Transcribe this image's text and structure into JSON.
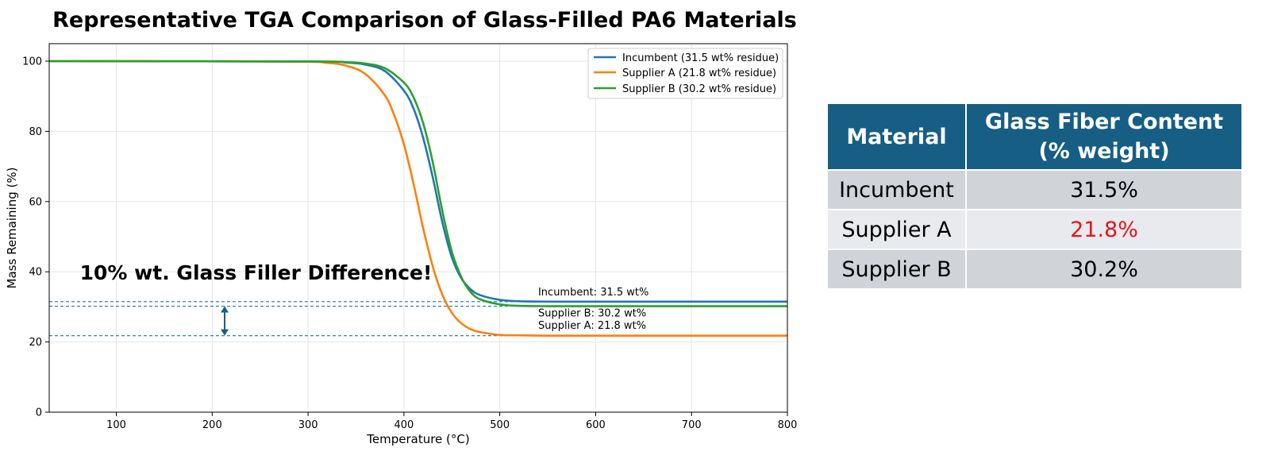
{
  "chart_data": {
    "type": "line",
    "title": "Representative TGA Comparison of Glass-Filled PA6 Materials",
    "xlabel": "Temperature (°C)",
    "ylabel": "Mass Remaining (%)",
    "xlim": [
      30,
      800
    ],
    "ylim": [
      0,
      105
    ],
    "xticks": [
      100,
      200,
      300,
      400,
      500,
      600,
      700,
      800
    ],
    "yticks": [
      0,
      20,
      40,
      60,
      80,
      100
    ],
    "grid": true,
    "legend_position": "top-right",
    "series": [
      {
        "name": "Incumbent (31.5 wt% residue)",
        "color": "#1f77b4",
        "x": [
          30,
          300,
          340,
          360,
          380,
          400,
          410,
          420,
          430,
          440,
          450,
          460,
          470,
          480,
          500,
          520,
          550,
          600,
          800
        ],
        "y": [
          100,
          99.9,
          99.6,
          99,
          97.2,
          91.6,
          86.5,
          78.2,
          67,
          54.2,
          44.1,
          38.1,
          34.9,
          33.3,
          32,
          31.6,
          31.5,
          31.5,
          31.5
        ]
      },
      {
        "name": "Supplier A (21.8 wt% residue)",
        "color": "#ff7f0e",
        "x": [
          30,
          280,
          320,
          340,
          360,
          380,
          390,
          400,
          410,
          420,
          430,
          440,
          450,
          460,
          470,
          480,
          500,
          520,
          550,
          600,
          800
        ],
        "y": [
          100,
          99.9,
          99.5,
          98.7,
          96.3,
          90.3,
          84.5,
          76.3,
          65.1,
          52.5,
          41.6,
          33.5,
          28.3,
          25.3,
          23.6,
          22.8,
          22,
          21.9,
          21.8,
          21.8,
          21.8
        ]
      },
      {
        "name": "Supplier B (30.2 wt% residue)",
        "color": "#2ca02c",
        "x": [
          30,
          300,
          340,
          360,
          380,
          400,
          410,
          420,
          430,
          440,
          450,
          460,
          470,
          480,
          500,
          520,
          550,
          600,
          800
        ],
        "y": [
          100,
          99.9,
          99.7,
          99.3,
          98,
          93.9,
          89.7,
          82.4,
          71.3,
          57.4,
          45.7,
          38.4,
          34.1,
          32.1,
          30.7,
          30.3,
          30.2,
          30.2,
          30.2
        ]
      }
    ],
    "reference_lines": [
      {
        "y": 31.5,
        "color": "#1f77b4"
      },
      {
        "y": 30.2,
        "color": "#1f77b4"
      },
      {
        "y": 21.8,
        "color": "#1f77b4"
      }
    ],
    "end_labels": [
      {
        "text": "Incumbent: 31.5 wt%",
        "x": 540,
        "y": 33.3
      },
      {
        "text": "Supplier B: 30.2 wt%",
        "x": 540,
        "y": 27.3
      },
      {
        "text": "Supplier A: 21.8 wt%",
        "x": 540,
        "y": 23.8
      }
    ],
    "annotation": {
      "text": "10% wt. Glass Filler Difference!",
      "x": 62,
      "y": 37.8,
      "arrow": {
        "x": 213,
        "y_from": 30.2,
        "y_to": 21.8,
        "color": "#175e84"
      }
    }
  },
  "table": {
    "headers": [
      "Material",
      "Glass Fiber Content (% weight)"
    ],
    "rows": [
      {
        "material": "Incumbent",
        "value": "31.5%",
        "highlight": false
      },
      {
        "material": "Supplier A",
        "value": "21.8%",
        "highlight": true
      },
      {
        "material": "Supplier B",
        "value": "30.2%",
        "highlight": false
      }
    ],
    "header_color": "#175e84",
    "highlight_color": "#e8141a"
  }
}
